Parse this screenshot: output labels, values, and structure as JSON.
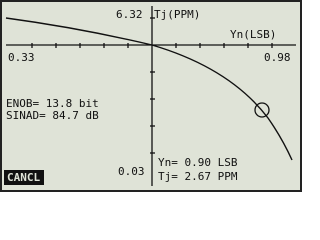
{
  "screen": {
    "y_max": "6.32",
    "y_label": "Tj(PPM)",
    "x_label": "Yn(LSB)",
    "x_min": "0.33",
    "x_max": "0.98",
    "y_min": "0.03",
    "enob": "ENOB= 13.8 bit",
    "sinad": "SINAD= 84.7 dB",
    "trace_x": "Yn= 0.90 LSB",
    "trace_y": "Tj= 2.67 PPM",
    "button": "CANCL"
  }
}
